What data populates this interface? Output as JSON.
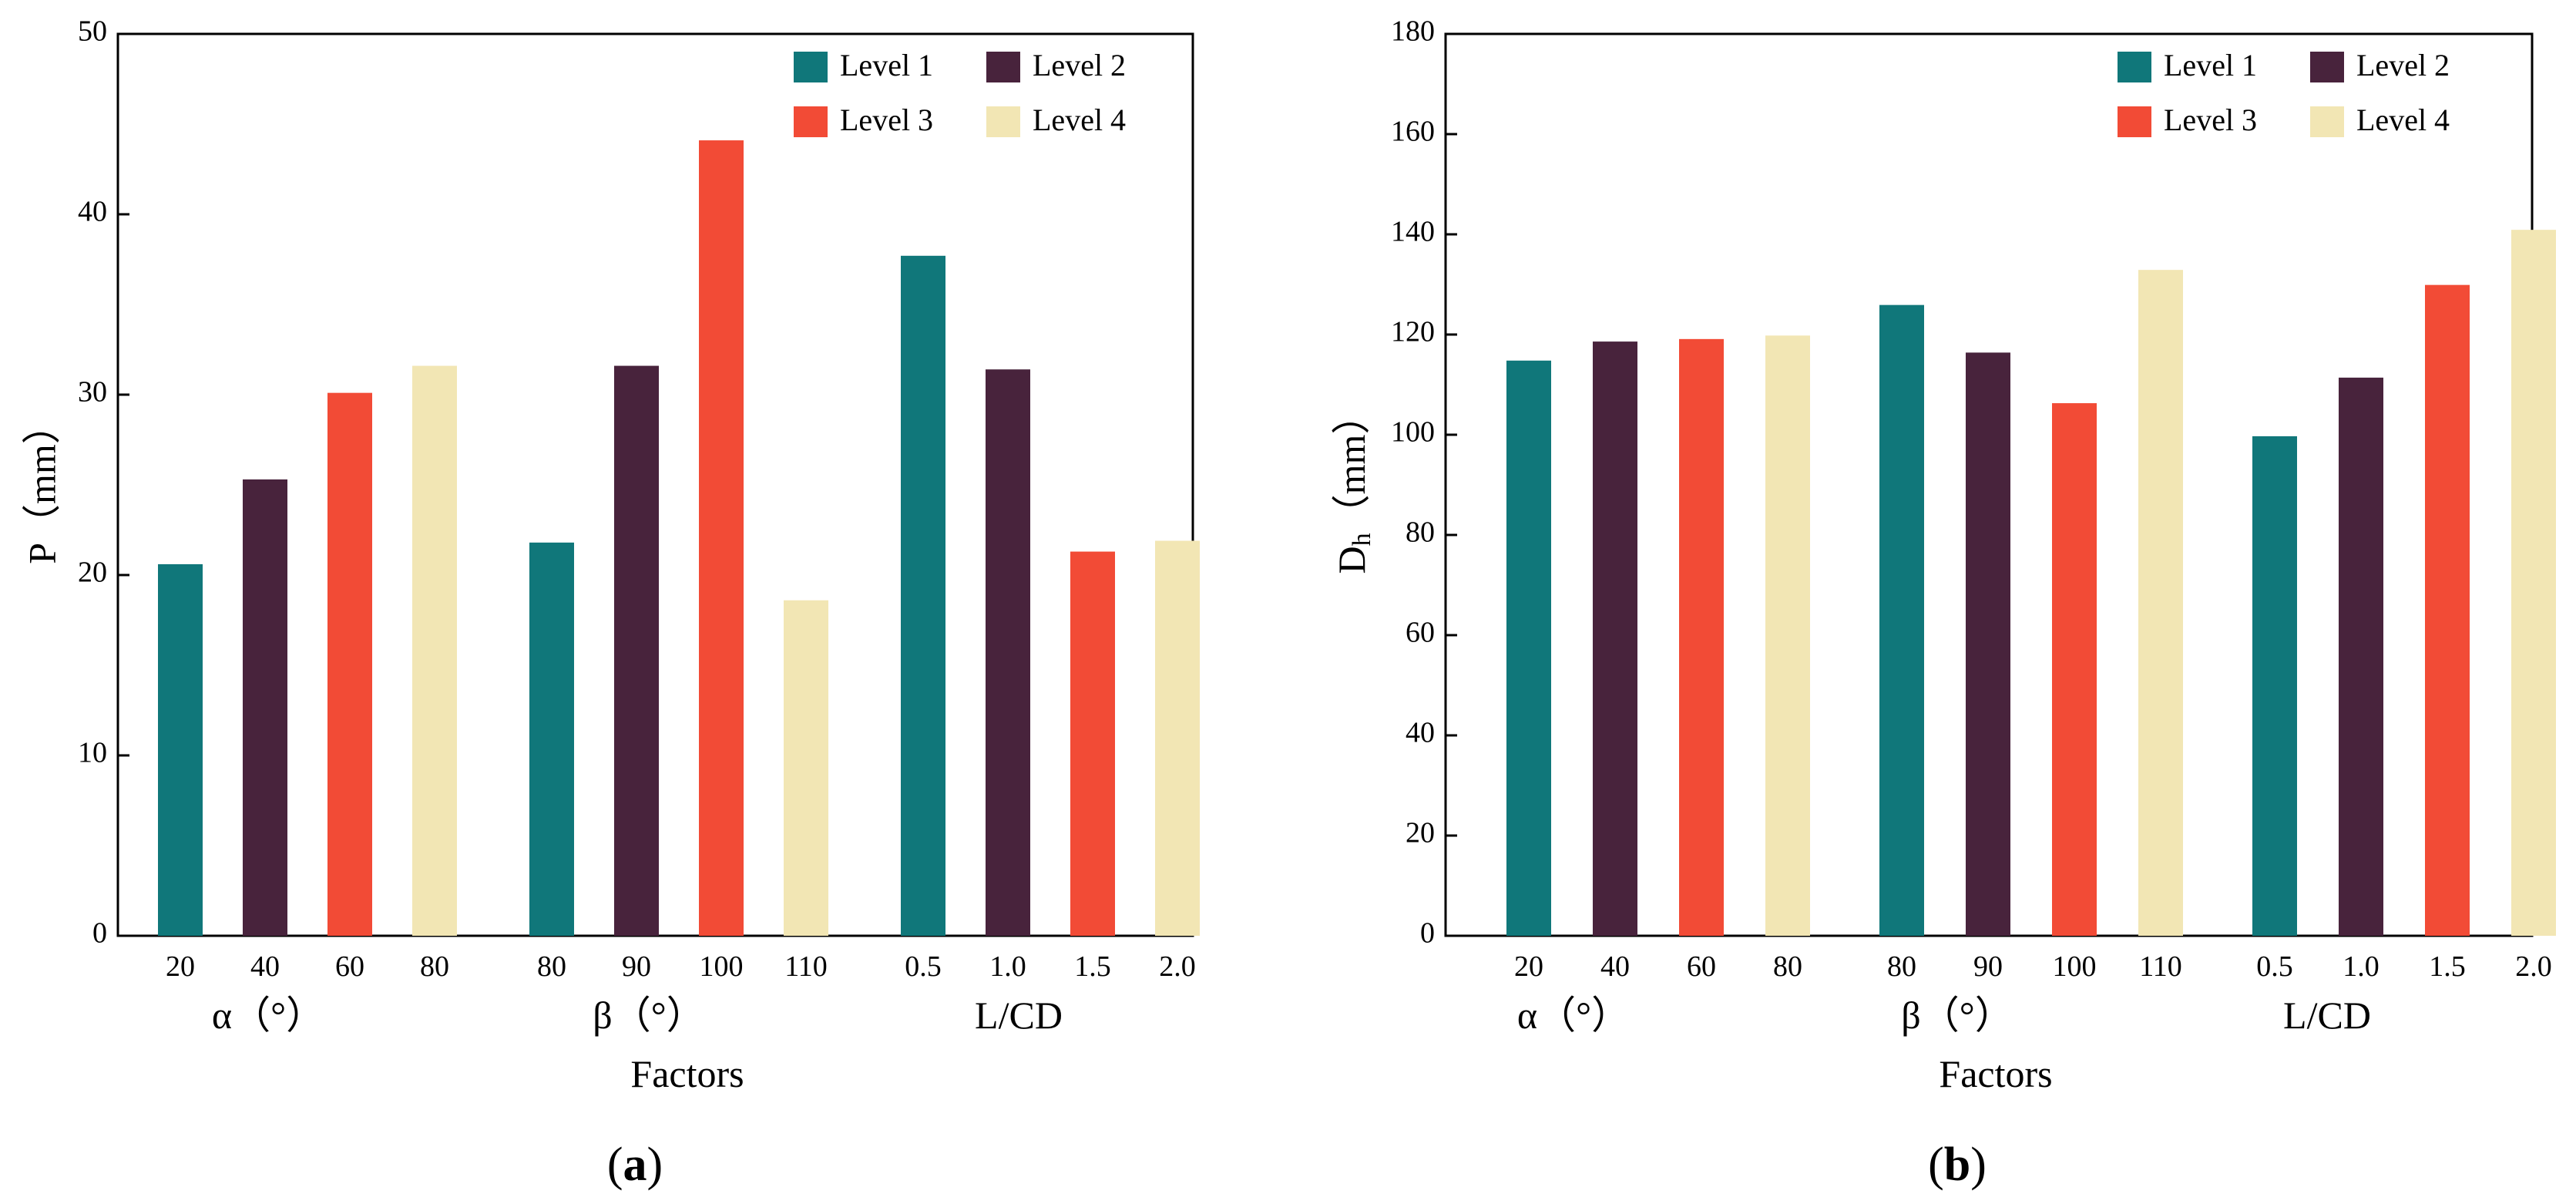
{
  "colors": {
    "level1": "#10777a",
    "level2": "#48233c",
    "level3": "#f24b36",
    "level4": "#f2e6b4",
    "axis": "#000000"
  },
  "chart_data": [
    {
      "type": "bar",
      "panel": "(a)",
      "panel_letter": "a",
      "ylabel": "P（mm）",
      "xlabel": "Factors",
      "ylim": [
        0,
        50
      ],
      "yticks": [
        0,
        10,
        20,
        30,
        40,
        50
      ],
      "legend": [
        "Level 1",
        "Level 2",
        "Level 3",
        "Level 4"
      ],
      "legend_position": "top-right",
      "groups": [
        {
          "label": "α（°）",
          "categories": [
            "20",
            "40",
            "60",
            "80"
          ],
          "values": [
            20.6,
            25.3,
            30.1,
            31.6
          ]
        },
        {
          "label": "β（°）",
          "categories": [
            "80",
            "90",
            "100",
            "110"
          ],
          "values": [
            21.8,
            31.6,
            44.1,
            18.6
          ]
        },
        {
          "label": "L/CD",
          "categories": [
            "0.5",
            "1.0",
            "1.5",
            "2.0"
          ],
          "values": [
            37.7,
            31.4,
            21.3,
            21.9
          ]
        }
      ]
    },
    {
      "type": "bar",
      "panel": "(b)",
      "panel_letter": "b",
      "ylabel": "D",
      "ylabel_sub": "h",
      "ylabel_unit": "（mm）",
      "xlabel": "Factors",
      "ylim": [
        0,
        180
      ],
      "yticks": [
        0,
        20,
        40,
        60,
        80,
        100,
        120,
        140,
        160,
        180
      ],
      "legend": [
        "Level 1",
        "Level 2",
        "Level 3",
        "Level 4"
      ],
      "legend_position": "top-right",
      "groups": [
        {
          "label": "α（°）",
          "categories": [
            "20",
            "40",
            "60",
            "80"
          ],
          "values": [
            114.8,
            118.6,
            119.1,
            119.8
          ]
        },
        {
          "label": "β（°）",
          "categories": [
            "80",
            "90",
            "100",
            "110"
          ],
          "values": [
            125.9,
            116.4,
            106.3,
            132.9
          ]
        },
        {
          "label": "L/CD",
          "categories": [
            "0.5",
            "1.0",
            "1.5",
            "2.0"
          ],
          "values": [
            99.7,
            111.4,
            129.9,
            140.9
          ]
        }
      ]
    }
  ]
}
